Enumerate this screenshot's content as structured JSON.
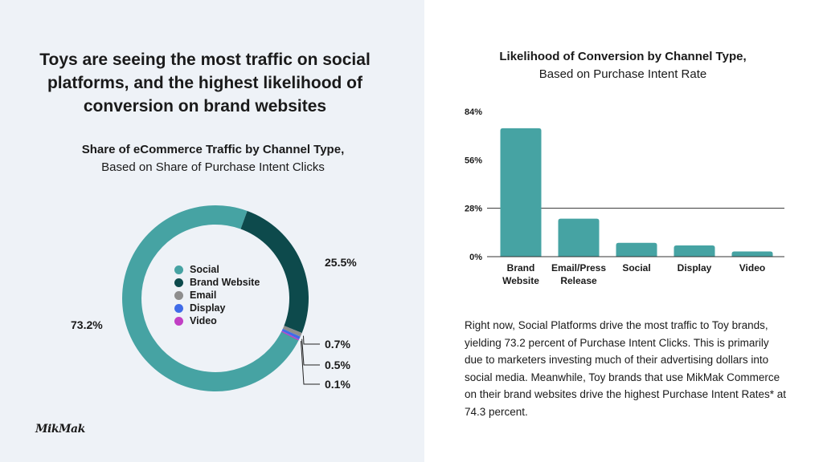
{
  "headline": "Toys are seeing the most traffic on social platforms, and the highest likelihood of conversion on brand websites",
  "logo_text": "MikMak",
  "body_text": "Right now, Social Platforms drive the most traffic to Toy brands, yielding 73.2 percent of Purchase Intent Clicks. This is primarily due to marketers investing much of their advertising dollars into social media. Meanwhile, Toy brands that use MikMak Commerce on their brand websites drive the highest Purchase Intent Rates* at 74.3 percent.",
  "colors": {
    "left_bg": "#eef2f7",
    "social": "#46a3a3",
    "brand_website": "#0d4a4c",
    "email": "#8e8e8e",
    "display": "#3f6be8",
    "video": "#c13fc4",
    "bar": "#46a3a3"
  },
  "chart_data": [
    {
      "type": "pie",
      "title": "Share of eCommerce Traffic by Channel Type,",
      "subtitle": "Based on Share of Purchase Intent Clicks",
      "categories": [
        "Social",
        "Brand Website",
        "Email",
        "Display",
        "Video"
      ],
      "values": [
        73.2,
        25.5,
        0.7,
        0.5,
        0.1
      ],
      "labels": [
        "73.2%",
        "25.5%",
        "0.7%",
        "0.5%",
        "0.1%"
      ],
      "legend_position": "center"
    },
    {
      "type": "bar",
      "title": "Likelihood of Conversion by Channel Type,",
      "subtitle": "Based on Purchase Intent Rate",
      "categories": [
        "Brand Website",
        "Email/Press Release",
        "Social",
        "Display",
        "Video"
      ],
      "category_lines": [
        [
          "Brand",
          "Website"
        ],
        [
          "Email/Press",
          "Release"
        ],
        [
          "Social"
        ],
        [
          "Display"
        ],
        [
          "Video"
        ]
      ],
      "values": [
        74.3,
        22,
        8,
        6.5,
        3
      ],
      "ylim": [
        0,
        84
      ],
      "yticks": [
        0,
        28,
        56,
        84
      ],
      "ytick_labels": [
        "0%",
        "28%",
        "56%",
        "84%"
      ],
      "xlabel": "",
      "ylabel": ""
    }
  ]
}
